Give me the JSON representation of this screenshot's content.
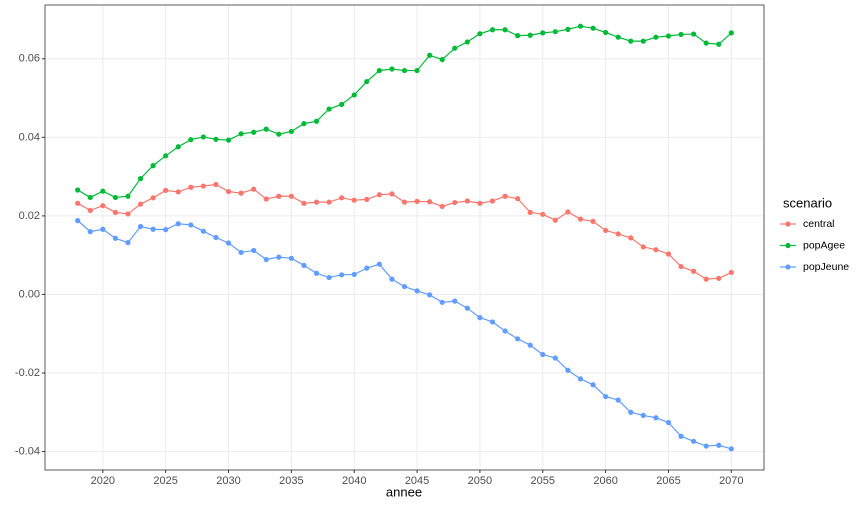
{
  "chart_data": {
    "type": "line",
    "x": [
      2018,
      2019,
      2020,
      2021,
      2022,
      2023,
      2024,
      2025,
      2026,
      2027,
      2028,
      2029,
      2030,
      2031,
      2032,
      2033,
      2034,
      2035,
      2036,
      2037,
      2038,
      2039,
      2040,
      2041,
      2042,
      2043,
      2044,
      2045,
      2046,
      2047,
      2048,
      2049,
      2050,
      2051,
      2052,
      2053,
      2054,
      2055,
      2056,
      2057,
      2058,
      2059,
      2060,
      2061,
      2062,
      2063,
      2064,
      2065,
      2066,
      2067,
      2068,
      2069,
      2070
    ],
    "series": [
      {
        "name": "central",
        "color": "#f8766d",
        "values": [
          0.0232,
          0.0214,
          0.0226,
          0.0209,
          0.0205,
          0.023,
          0.0246,
          0.0265,
          0.0261,
          0.0273,
          0.0276,
          0.028,
          0.0262,
          0.0258,
          0.0268,
          0.0243,
          0.025,
          0.025,
          0.0232,
          0.0235,
          0.0235,
          0.0246,
          0.024,
          0.0242,
          0.0254,
          0.0256,
          0.0235,
          0.0237,
          0.0236,
          0.0224,
          0.0234,
          0.0238,
          0.0232,
          0.0238,
          0.025,
          0.0244,
          0.0209,
          0.0204,
          0.0189,
          0.021,
          0.0192,
          0.0186,
          0.0163,
          0.0154,
          0.0144,
          0.0121,
          0.0114,
          0.0103,
          0.0071,
          0.0059,
          0.0039,
          0.0041,
          0.0056
        ]
      },
      {
        "name": "popAgee",
        "color": "#00ba38",
        "values": [
          0.0266,
          0.0247,
          0.0263,
          0.0247,
          0.025,
          0.0295,
          0.0328,
          0.0353,
          0.0376,
          0.0394,
          0.0401,
          0.0395,
          0.0393,
          0.0409,
          0.0413,
          0.0421,
          0.0408,
          0.0415,
          0.0435,
          0.0441,
          0.0472,
          0.0484,
          0.0508,
          0.0542,
          0.057,
          0.0574,
          0.057,
          0.057,
          0.0609,
          0.0598,
          0.0627,
          0.0643,
          0.0664,
          0.0674,
          0.0674,
          0.0659,
          0.066,
          0.0666,
          0.0669,
          0.0675,
          0.0683,
          0.0678,
          0.0667,
          0.0655,
          0.0645,
          0.0645,
          0.0655,
          0.0658,
          0.0662,
          0.0663,
          0.064,
          0.0637,
          0.0666
        ]
      },
      {
        "name": "popJeune",
        "color": "#619cff",
        "values": [
          0.0188,
          0.016,
          0.0166,
          0.0143,
          0.0132,
          0.0173,
          0.0166,
          0.0165,
          0.018,
          0.0177,
          0.0161,
          0.0145,
          0.0131,
          0.0107,
          0.0112,
          0.0089,
          0.0095,
          0.0092,
          0.0074,
          0.0054,
          0.0043,
          0.005,
          0.0051,
          0.0067,
          0.0077,
          0.0039,
          0.002,
          0.0009,
          -0.0001,
          -0.002,
          -0.0017,
          -0.0035,
          -0.0059,
          -0.007,
          -0.0093,
          -0.0113,
          -0.0129,
          -0.0153,
          -0.0162,
          -0.0193,
          -0.0215,
          -0.023,
          -0.026,
          -0.0269,
          -0.03,
          -0.0308,
          -0.0314,
          -0.0326,
          -0.0361,
          -0.0374,
          -0.0386,
          -0.0384,
          -0.0393
        ]
      }
    ],
    "x_label": "annee",
    "legend_title": "scenario",
    "xlim": [
      2015.4,
      2072.6
    ],
    "xticks": [
      2020,
      2025,
      2030,
      2035,
      2040,
      2045,
      2050,
      2055,
      2060,
      2065,
      2070
    ],
    "ylim": [
      -0.0447,
      0.0737
    ],
    "yticks": [
      -0.04,
      -0.02,
      {
        "value": 0,
        "label": "0.00"
      },
      0.02,
      0.04,
      0.06
    ],
    "grid": true,
    "legend": "right"
  }
}
